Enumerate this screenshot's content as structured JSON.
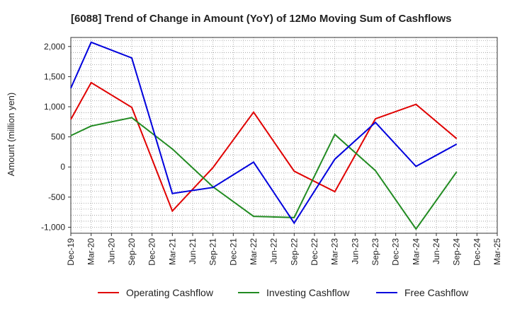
{
  "chart_data": {
    "type": "line",
    "title": "[6088]  Trend of Change in Amount (YoY) of 12Mo Moving Sum of Cashflows",
    "xlabel": "",
    "ylabel": "Amount (million yen)",
    "ylim": [
      -1100,
      2150
    ],
    "yticks": [
      -1000,
      -500,
      0,
      500,
      1000,
      1500,
      2000
    ],
    "ytick_labels": [
      "-1,000",
      "-500",
      "0",
      "500",
      "1,000",
      "1,500",
      "2,000"
    ],
    "categories": [
      "Dec-19",
      "Mar-20",
      "Jun-20",
      "Sep-20",
      "Dec-20",
      "Mar-21",
      "Jun-21",
      "Sep-21",
      "Dec-21",
      "Mar-22",
      "Jun-22",
      "Sep-22",
      "Dec-22",
      "Mar-23",
      "Jun-23",
      "Sep-23",
      "Dec-23",
      "Mar-24",
      "Jun-24",
      "Sep-24",
      "Dec-24",
      "Mar-25"
    ],
    "grid": true,
    "legend_position": "bottom",
    "series": [
      {
        "name": "Operating Cashflow",
        "color": "#e00000",
        "values": [
          790,
          1400,
          null,
          990,
          null,
          -730,
          null,
          -10,
          null,
          910,
          null,
          -70,
          null,
          -410,
          null,
          800,
          null,
          1040,
          null,
          470,
          null,
          null
        ]
      },
      {
        "name": "Investing Cashflow",
        "color": "#228b22",
        "values": [
          520,
          680,
          null,
          820,
          null,
          300,
          null,
          -330,
          null,
          -820,
          null,
          -840,
          null,
          540,
          null,
          -60,
          null,
          -1030,
          null,
          -80,
          null,
          null
        ]
      },
      {
        "name": "Free Cashflow",
        "color": "#0000dd",
        "values": [
          1310,
          2070,
          null,
          1810,
          null,
          -440,
          null,
          -340,
          null,
          80,
          null,
          -930,
          null,
          130,
          null,
          740,
          null,
          10,
          null,
          380,
          null,
          null
        ]
      }
    ]
  }
}
